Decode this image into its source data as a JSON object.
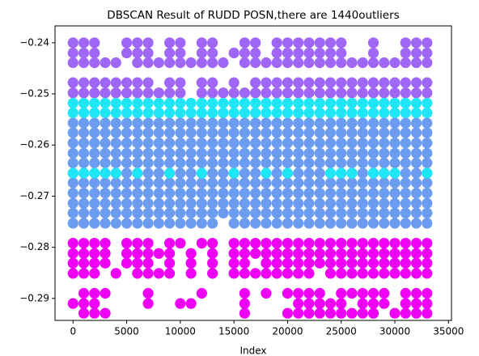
{
  "chart_data": {
    "type": "scatter",
    "title": "DBSCAN Result of RUDD POSN,there are 1440outliers",
    "xlabel": "Index",
    "x": [
      0,
      1000,
      2000,
      3000,
      4000,
      5000,
      6000,
      7000,
      8000,
      9000,
      10000,
      11000,
      12000,
      13000,
      14000,
      15000,
      16000,
      17000,
      18000,
      19000,
      20000,
      21000,
      22000,
      23000,
      24000,
      25000,
      26000,
      27000,
      28000,
      29000,
      30000,
      31000,
      32000,
      33000
    ],
    "xlim": [
      -1680,
      35280
    ],
    "ylim": [
      -0.2943,
      -0.2367
    ],
    "xticks": [
      0,
      5000,
      10000,
      15000,
      20000,
      25000,
      30000,
      35000
    ],
    "yticks": [
      {
        "value": -0.24,
        "label": "−0.24"
      },
      {
        "value": -0.25,
        "label": "−0.25"
      },
      {
        "value": -0.26,
        "label": "−0.26"
      },
      {
        "value": -0.27,
        "label": "−0.27"
      },
      {
        "value": -0.28,
        "label": "−0.28"
      },
      {
        "value": -0.29,
        "label": "−0.29"
      }
    ],
    "grid": false,
    "series": [
      {
        "color": "#a066f5",
        "values": [
          -0.24,
          -0.24,
          -0.24,
          null,
          null,
          -0.24,
          -0.24,
          -0.24,
          null,
          -0.24,
          -0.24,
          null,
          -0.24,
          -0.24,
          null,
          null,
          -0.24,
          -0.24,
          null,
          -0.24,
          -0.24,
          -0.24,
          -0.24,
          -0.24,
          -0.24,
          -0.24,
          null,
          null,
          -0.24,
          null,
          null,
          -0.24,
          -0.24,
          -0.24
        ]
      },
      {
        "color": "#a066f5",
        "values": [
          -0.242,
          -0.242,
          -0.242,
          null,
          null,
          -0.242,
          -0.242,
          -0.242,
          null,
          -0.242,
          -0.242,
          null,
          -0.242,
          -0.242,
          null,
          -0.242,
          -0.242,
          -0.242,
          null,
          -0.242,
          -0.242,
          -0.242,
          -0.242,
          -0.242,
          -0.242,
          -0.242,
          null,
          null,
          -0.242,
          null,
          null,
          -0.242,
          -0.242,
          -0.242
        ]
      },
      {
        "color": "#a066f5",
        "values": [
          -0.2439,
          -0.2439,
          -0.2439,
          -0.2439,
          -0.2439,
          null,
          -0.2439,
          -0.2439,
          -0.2439,
          -0.2439,
          -0.2439,
          -0.2439,
          -0.2439,
          -0.2439,
          -0.2439,
          null,
          -0.2439,
          -0.2439,
          -0.2439,
          -0.2439,
          -0.2439,
          -0.2439,
          -0.2439,
          -0.2439,
          -0.2439,
          -0.2439,
          -0.2439,
          -0.2439,
          -0.2439,
          -0.2439,
          -0.2439,
          -0.2439,
          -0.2439,
          -0.2439
        ]
      },
      {
        "color": "#a066f5",
        "values": [
          -0.2478,
          -0.2478,
          -0.2478,
          -0.2478,
          -0.2478,
          -0.2478,
          -0.2478,
          -0.2478,
          null,
          -0.2478,
          -0.2478,
          null,
          -0.2478,
          -0.2478,
          null,
          -0.2478,
          null,
          -0.2478,
          -0.2478,
          -0.2478,
          -0.2478,
          -0.2478,
          -0.2478,
          -0.2478,
          -0.2478,
          -0.2478,
          -0.2478,
          -0.2478,
          -0.2478,
          -0.2478,
          -0.2478,
          -0.2478,
          -0.2478,
          -0.2478
        ]
      },
      {
        "color": "#a066f5",
        "values": [
          -0.2498,
          -0.2498,
          -0.2498,
          -0.2498,
          -0.2498,
          -0.2498,
          -0.2498,
          -0.2498,
          -0.2498,
          -0.2498,
          -0.2498,
          null,
          -0.2498,
          -0.2498,
          -0.2498,
          -0.2498,
          -0.2498,
          -0.2498,
          -0.2498,
          -0.2498,
          -0.2498,
          -0.2498,
          -0.2498,
          -0.2498,
          -0.2498,
          -0.2498,
          -0.2498,
          -0.2498,
          -0.2498,
          -0.2498,
          -0.2498,
          -0.2498,
          -0.2498,
          -0.2498
        ]
      },
      {
        "color": "#1ee6f5",
        "values": [
          -0.2518,
          -0.2518,
          -0.2518,
          -0.2518,
          -0.2518,
          -0.2518,
          -0.2518,
          -0.2518,
          -0.2518,
          -0.2518,
          -0.2518,
          -0.2518,
          -0.2518,
          -0.2518,
          -0.2518,
          -0.2518,
          -0.2518,
          -0.2518,
          -0.2518,
          -0.2518,
          -0.2518,
          -0.2518,
          -0.2518,
          -0.2518,
          -0.2518,
          -0.2518,
          -0.2518,
          -0.2518,
          -0.2518,
          -0.2518,
          -0.2518,
          -0.2518,
          -0.2518,
          -0.2518
        ]
      },
      {
        "color": "#1ee6f5",
        "values": [
          -0.2537,
          -0.2537,
          -0.2537,
          -0.2537,
          -0.2537,
          -0.2537,
          -0.2537,
          -0.2537,
          -0.2537,
          -0.2537,
          -0.2537,
          -0.2537,
          -0.2537,
          -0.2537,
          -0.2537,
          -0.2537,
          -0.2537,
          -0.2537,
          -0.2537,
          -0.2537,
          -0.2537,
          -0.2537,
          -0.2537,
          -0.2537,
          -0.2537,
          -0.2537,
          -0.2537,
          -0.2537,
          -0.2537,
          -0.2537,
          -0.2537,
          -0.2537,
          -0.2537,
          -0.2537
        ]
      },
      {
        "color": "#6c9cf0",
        "values": [
          -0.2557,
          -0.2557,
          -0.2557,
          -0.2557,
          -0.2557,
          -0.2557,
          -0.2557,
          -0.2557,
          -0.2557,
          -0.2557,
          -0.2557,
          -0.2557,
          -0.2557,
          -0.2557,
          -0.2557,
          -0.2557,
          -0.2557,
          -0.2557,
          -0.2557,
          -0.2557,
          -0.2557,
          -0.2557,
          -0.2557,
          -0.2557,
          -0.2557,
          -0.2557,
          -0.2557,
          -0.2557,
          -0.2557,
          -0.2557,
          -0.2557,
          -0.2557,
          -0.2557,
          -0.2557
        ]
      },
      {
        "color": "#6c9cf0",
        "values": [
          -0.2576,
          -0.2576,
          -0.2576,
          -0.2576,
          -0.2576,
          -0.2576,
          -0.2576,
          -0.2576,
          -0.2576,
          -0.2576,
          -0.2576,
          -0.2576,
          -0.2576,
          -0.2576,
          -0.2576,
          -0.2576,
          -0.2576,
          -0.2576,
          -0.2576,
          -0.2576,
          -0.2576,
          -0.2576,
          -0.2576,
          -0.2576,
          -0.2576,
          -0.2576,
          -0.2576,
          -0.2576,
          -0.2576,
          -0.2576,
          -0.2576,
          -0.2576,
          -0.2576,
          -0.2576
        ]
      },
      {
        "color": "#6c9cf0",
        "values": [
          -0.2596,
          -0.2596,
          -0.2596,
          -0.2596,
          -0.2596,
          -0.2596,
          -0.2596,
          -0.2596,
          -0.2596,
          -0.2596,
          -0.2596,
          -0.2596,
          -0.2596,
          -0.2596,
          -0.2596,
          -0.2596,
          -0.2596,
          -0.2596,
          -0.2596,
          -0.2596,
          -0.2596,
          -0.2596,
          -0.2596,
          -0.2596,
          -0.2596,
          -0.2596,
          -0.2596,
          -0.2596,
          -0.2596,
          -0.2596,
          -0.2596,
          -0.2596,
          -0.2596,
          -0.2596
        ]
      },
      {
        "color": "#6c9cf0",
        "values": [
          -0.2616,
          -0.2616,
          -0.2616,
          -0.2616,
          -0.2616,
          -0.2616,
          -0.2616,
          -0.2616,
          -0.2616,
          -0.2616,
          -0.2616,
          -0.2616,
          -0.2616,
          -0.2616,
          -0.2616,
          -0.2616,
          -0.2616,
          -0.2616,
          -0.2616,
          -0.2616,
          -0.2616,
          -0.2616,
          -0.2616,
          -0.2616,
          -0.2616,
          -0.2616,
          -0.2616,
          -0.2616,
          -0.2616,
          -0.2616,
          -0.2616,
          -0.2616,
          -0.2616,
          -0.2616
        ]
      },
      {
        "color": "#6c9cf0",
        "values": [
          -0.2635,
          -0.2635,
          -0.2635,
          -0.2635,
          -0.2635,
          -0.2635,
          -0.2635,
          -0.2635,
          -0.2635,
          -0.2635,
          -0.2635,
          -0.2635,
          -0.2635,
          -0.2635,
          -0.2635,
          -0.2635,
          -0.2635,
          -0.2635,
          -0.2635,
          -0.2635,
          -0.2635,
          -0.2635,
          -0.2635,
          -0.2635,
          -0.2635,
          -0.2635,
          -0.2635,
          -0.2635,
          -0.2635,
          -0.2635,
          -0.2635,
          -0.2635,
          -0.2635,
          -0.2635
        ]
      },
      {
        "color": "#6c9cf0",
        "values": [
          -0.2655,
          -0.2655,
          -0.2655,
          -0.2655,
          -0.2655,
          -0.2655,
          -0.2655,
          -0.2655,
          -0.2655,
          -0.2655,
          -0.2655,
          -0.2655,
          -0.2655,
          -0.2655,
          -0.2655,
          -0.2655,
          -0.2655,
          -0.2655,
          -0.2655,
          -0.2655,
          -0.2655,
          -0.2655,
          -0.2655,
          -0.2655,
          -0.2655,
          -0.2655,
          -0.2655,
          -0.2655,
          -0.2655,
          -0.2655,
          -0.2655,
          -0.2655,
          -0.2655,
          -0.2655
        ]
      },
      {
        "color": "#6c9cf0",
        "values": [
          -0.2674,
          -0.2674,
          -0.2674,
          -0.2674,
          -0.2674,
          -0.2674,
          -0.2674,
          -0.2674,
          -0.2674,
          -0.2674,
          -0.2674,
          -0.2674,
          -0.2674,
          -0.2674,
          -0.2674,
          -0.2674,
          -0.2674,
          -0.2674,
          -0.2674,
          -0.2674,
          -0.2674,
          -0.2674,
          -0.2674,
          -0.2674,
          -0.2674,
          -0.2674,
          -0.2674,
          -0.2674,
          -0.2674,
          -0.2674,
          -0.2674,
          -0.2674,
          -0.2674,
          -0.2674
        ]
      },
      {
        "color": "#6c9cf0",
        "values": [
          -0.2694,
          -0.2694,
          -0.2694,
          -0.2694,
          -0.2694,
          -0.2694,
          -0.2694,
          -0.2694,
          -0.2694,
          -0.2694,
          -0.2694,
          -0.2694,
          -0.2694,
          -0.2694,
          -0.2694,
          -0.2694,
          -0.2694,
          -0.2694,
          -0.2694,
          -0.2694,
          -0.2694,
          -0.2694,
          -0.2694,
          -0.2694,
          -0.2694,
          -0.2694,
          -0.2694,
          -0.2694,
          -0.2694,
          -0.2694,
          -0.2694,
          -0.2694,
          -0.2694,
          -0.2694
        ]
      },
      {
        "color": "#6c9cf0",
        "values": [
          -0.2714,
          -0.2714,
          -0.2714,
          -0.2714,
          -0.2714,
          -0.2714,
          -0.2714,
          -0.2714,
          -0.2714,
          -0.2714,
          -0.2714,
          -0.2714,
          -0.2714,
          -0.2714,
          -0.2714,
          -0.2714,
          -0.2714,
          -0.2714,
          -0.2714,
          -0.2714,
          -0.2714,
          -0.2714,
          -0.2714,
          -0.2714,
          -0.2714,
          -0.2714,
          -0.2714,
          -0.2714,
          -0.2714,
          -0.2714,
          -0.2714,
          -0.2714,
          -0.2714,
          -0.2714
        ]
      },
      {
        "color": "#6c9cf0",
        "values": [
          -0.2733,
          -0.2733,
          -0.2733,
          -0.2733,
          -0.2733,
          -0.2733,
          -0.2733,
          -0.2733,
          -0.2733,
          -0.2733,
          -0.2733,
          -0.2733,
          -0.2733,
          -0.2733,
          -0.2733,
          -0.2733,
          -0.2733,
          -0.2733,
          -0.2733,
          -0.2733,
          -0.2733,
          -0.2733,
          -0.2733,
          -0.2733,
          -0.2733,
          -0.2733,
          -0.2733,
          -0.2733,
          -0.2733,
          -0.2733,
          -0.2733,
          -0.2733,
          -0.2733,
          -0.2733
        ]
      },
      {
        "color": "#6c9cf0",
        "values": [
          -0.2753,
          -0.2753,
          -0.2753,
          -0.2753,
          -0.2753,
          -0.2753,
          -0.2753,
          -0.2753,
          -0.2753,
          -0.2753,
          -0.2753,
          -0.2753,
          -0.2753,
          -0.2753,
          null,
          -0.2753,
          -0.2753,
          -0.2753,
          -0.2753,
          -0.2753,
          -0.2753,
          -0.2753,
          -0.2753,
          -0.2753,
          -0.2753,
          -0.2753,
          -0.2753,
          -0.2753,
          -0.2753,
          -0.2753,
          -0.2753,
          -0.2753,
          -0.2753,
          -0.2753
        ]
      },
      {
        "color": "#1ee6f5",
        "values": [
          -0.2655,
          -0.2655,
          -0.2655,
          -0.2655,
          -0.2655,
          null,
          -0.2655,
          null,
          null,
          -0.2655,
          null,
          null,
          -0.2655,
          null,
          null,
          -0.2655,
          null,
          null,
          -0.2655,
          null,
          -0.2655,
          null,
          null,
          null,
          -0.2655,
          -0.2655,
          -0.2655,
          null,
          -0.2655,
          -0.2655,
          -0.2655,
          null,
          null,
          -0.2655
        ]
      },
      {
        "color": "#ee00f5",
        "values": [
          -0.2792,
          -0.2792,
          -0.2792,
          -0.2792,
          null,
          -0.2792,
          -0.2792,
          -0.2792,
          null,
          -0.2792,
          -0.2792,
          null,
          -0.2792,
          -0.2792,
          null,
          -0.2792,
          -0.2792,
          -0.2792,
          -0.2792,
          -0.2792,
          -0.2792,
          -0.2792,
          -0.2792,
          -0.2792,
          -0.2792,
          -0.2792,
          -0.2792,
          -0.2792,
          -0.2792,
          -0.2792,
          -0.2792,
          -0.2792,
          -0.2792,
          -0.2792
        ]
      },
      {
        "color": "#ee00f5",
        "values": [
          -0.2812,
          -0.2812,
          -0.2812,
          -0.2812,
          null,
          -0.2812,
          -0.2812,
          -0.2812,
          -0.2812,
          -0.2812,
          null,
          -0.2812,
          null,
          -0.2812,
          null,
          -0.2812,
          -0.2812,
          -0.2812,
          -0.2812,
          -0.2812,
          -0.2812,
          -0.2812,
          -0.2812,
          -0.2812,
          -0.2812,
          -0.2812,
          -0.2812,
          -0.2812,
          -0.2812,
          -0.2812,
          -0.2812,
          -0.2812,
          -0.2812,
          -0.2812
        ]
      },
      {
        "color": "#ee00f5",
        "values": [
          -0.2831,
          -0.2831,
          -0.2831,
          -0.2831,
          null,
          -0.2831,
          -0.2831,
          -0.2831,
          null,
          -0.2831,
          null,
          -0.2831,
          null,
          -0.2831,
          null,
          -0.2831,
          -0.2831,
          null,
          -0.2831,
          -0.2831,
          -0.2831,
          -0.2831,
          -0.2831,
          -0.2831,
          -0.2831,
          -0.2831,
          -0.2831,
          -0.2831,
          -0.2831,
          -0.2831,
          -0.2831,
          -0.2831,
          -0.2831,
          -0.2831
        ]
      },
      {
        "color": "#ee00f5",
        "values": [
          -0.2851,
          -0.2851,
          -0.2851,
          null,
          -0.2851,
          null,
          -0.2851,
          -0.2851,
          -0.2851,
          -0.2851,
          null,
          -0.2851,
          null,
          -0.2851,
          null,
          -0.2851,
          -0.2851,
          -0.2851,
          -0.2851,
          -0.2851,
          -0.2851,
          -0.2851,
          -0.2851,
          null,
          -0.2851,
          -0.2851,
          -0.2851,
          -0.2851,
          -0.2851,
          -0.2851,
          -0.2851,
          -0.2851,
          -0.2851,
          -0.2851
        ]
      },
      {
        "color": "#ee00f5",
        "values": [
          null,
          -0.289,
          -0.289,
          -0.289,
          null,
          null,
          null,
          -0.289,
          null,
          null,
          null,
          null,
          -0.289,
          null,
          null,
          null,
          -0.289,
          null,
          -0.289,
          null,
          -0.289,
          -0.289,
          -0.289,
          -0.289,
          null,
          -0.289,
          -0.289,
          -0.289,
          -0.289,
          -0.289,
          null,
          -0.289,
          -0.289,
          -0.289
        ]
      },
      {
        "color": "#ee00f5",
        "values": [
          -0.291,
          -0.291,
          -0.291,
          null,
          null,
          null,
          null,
          -0.291,
          null,
          null,
          -0.291,
          -0.291,
          null,
          null,
          null,
          null,
          -0.291,
          null,
          null,
          null,
          null,
          -0.291,
          -0.291,
          -0.291,
          -0.291,
          -0.291,
          null,
          -0.291,
          -0.291,
          -0.291,
          null,
          -0.291,
          -0.291,
          -0.291
        ]
      },
      {
        "color": "#ee00f5",
        "values": [
          null,
          -0.2929,
          -0.2929,
          -0.2929,
          null,
          null,
          null,
          null,
          null,
          null,
          null,
          null,
          null,
          null,
          null,
          null,
          -0.2929,
          null,
          null,
          null,
          -0.2929,
          -0.2929,
          -0.2929,
          -0.2929,
          -0.2929,
          -0.2929,
          -0.2929,
          -0.2929,
          -0.2929,
          null,
          -0.2929,
          -0.2929,
          -0.2929,
          -0.2929
        ]
      }
    ]
  }
}
